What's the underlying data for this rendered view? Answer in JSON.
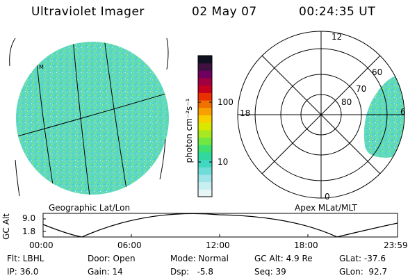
{
  "header": {
    "instrument": "Ultraviolet Imager",
    "date": "02 May 07",
    "time": "00:24:35 UT"
  },
  "colorbar": {
    "unit_label": "photon cm⁻²s⁻¹",
    "ticks": [
      "100",
      "10"
    ],
    "colors": [
      "#e8f6f6",
      "#c8eef0",
      "#a0e4e8",
      "#70dcd8",
      "#40d8c0",
      "#30d8a0",
      "#40e070",
      "#70e840",
      "#a8e820",
      "#d8e800",
      "#f8d000",
      "#f8a000",
      "#f07000",
      "#e83000",
      "#c80020",
      "#a00040",
      "#700060",
      "#401040",
      "#101020"
    ]
  },
  "geo_panel": {
    "label": "Geographic Lat/Lon",
    "marker": "M",
    "fill_color": "#50d8b8"
  },
  "polar_panel": {
    "label": "Apex MLat/MLT",
    "mlt_labels": {
      "top": "12",
      "left": "18",
      "right": "6",
      "bottom": "0"
    },
    "lat_labels": [
      "60",
      "70",
      "80"
    ]
  },
  "altitude_plot": {
    "ylabel": "GC Alt",
    "ytick_labels": [
      "9.0",
      "1.8"
    ],
    "xtick_labels": [
      "00:00",
      "06:00",
      "12:00",
      "18:00",
      "23:59"
    ]
  },
  "info": {
    "rows": [
      [
        {
          "name": "filter",
          "text": "Flt: LBHL"
        },
        {
          "name": "door",
          "text": "Door: Open"
        },
        {
          "name": "mode",
          "text": "Mode: Normal"
        },
        {
          "name": "gc-alt",
          "text": "GC Alt: 4.9 Re"
        },
        {
          "name": "glat",
          "text": "GLat: -37.6"
        }
      ],
      [
        {
          "name": "ip",
          "text": "IP: 36.0"
        },
        {
          "name": "gain",
          "text": "Gain: 14"
        },
        {
          "name": "dsp",
          "text": "Dsp:   -5.8"
        },
        {
          "name": "seq",
          "text": "Seq: 39"
        },
        {
          "name": "glon",
          "text": "GLon:  92.7"
        }
      ]
    ]
  }
}
